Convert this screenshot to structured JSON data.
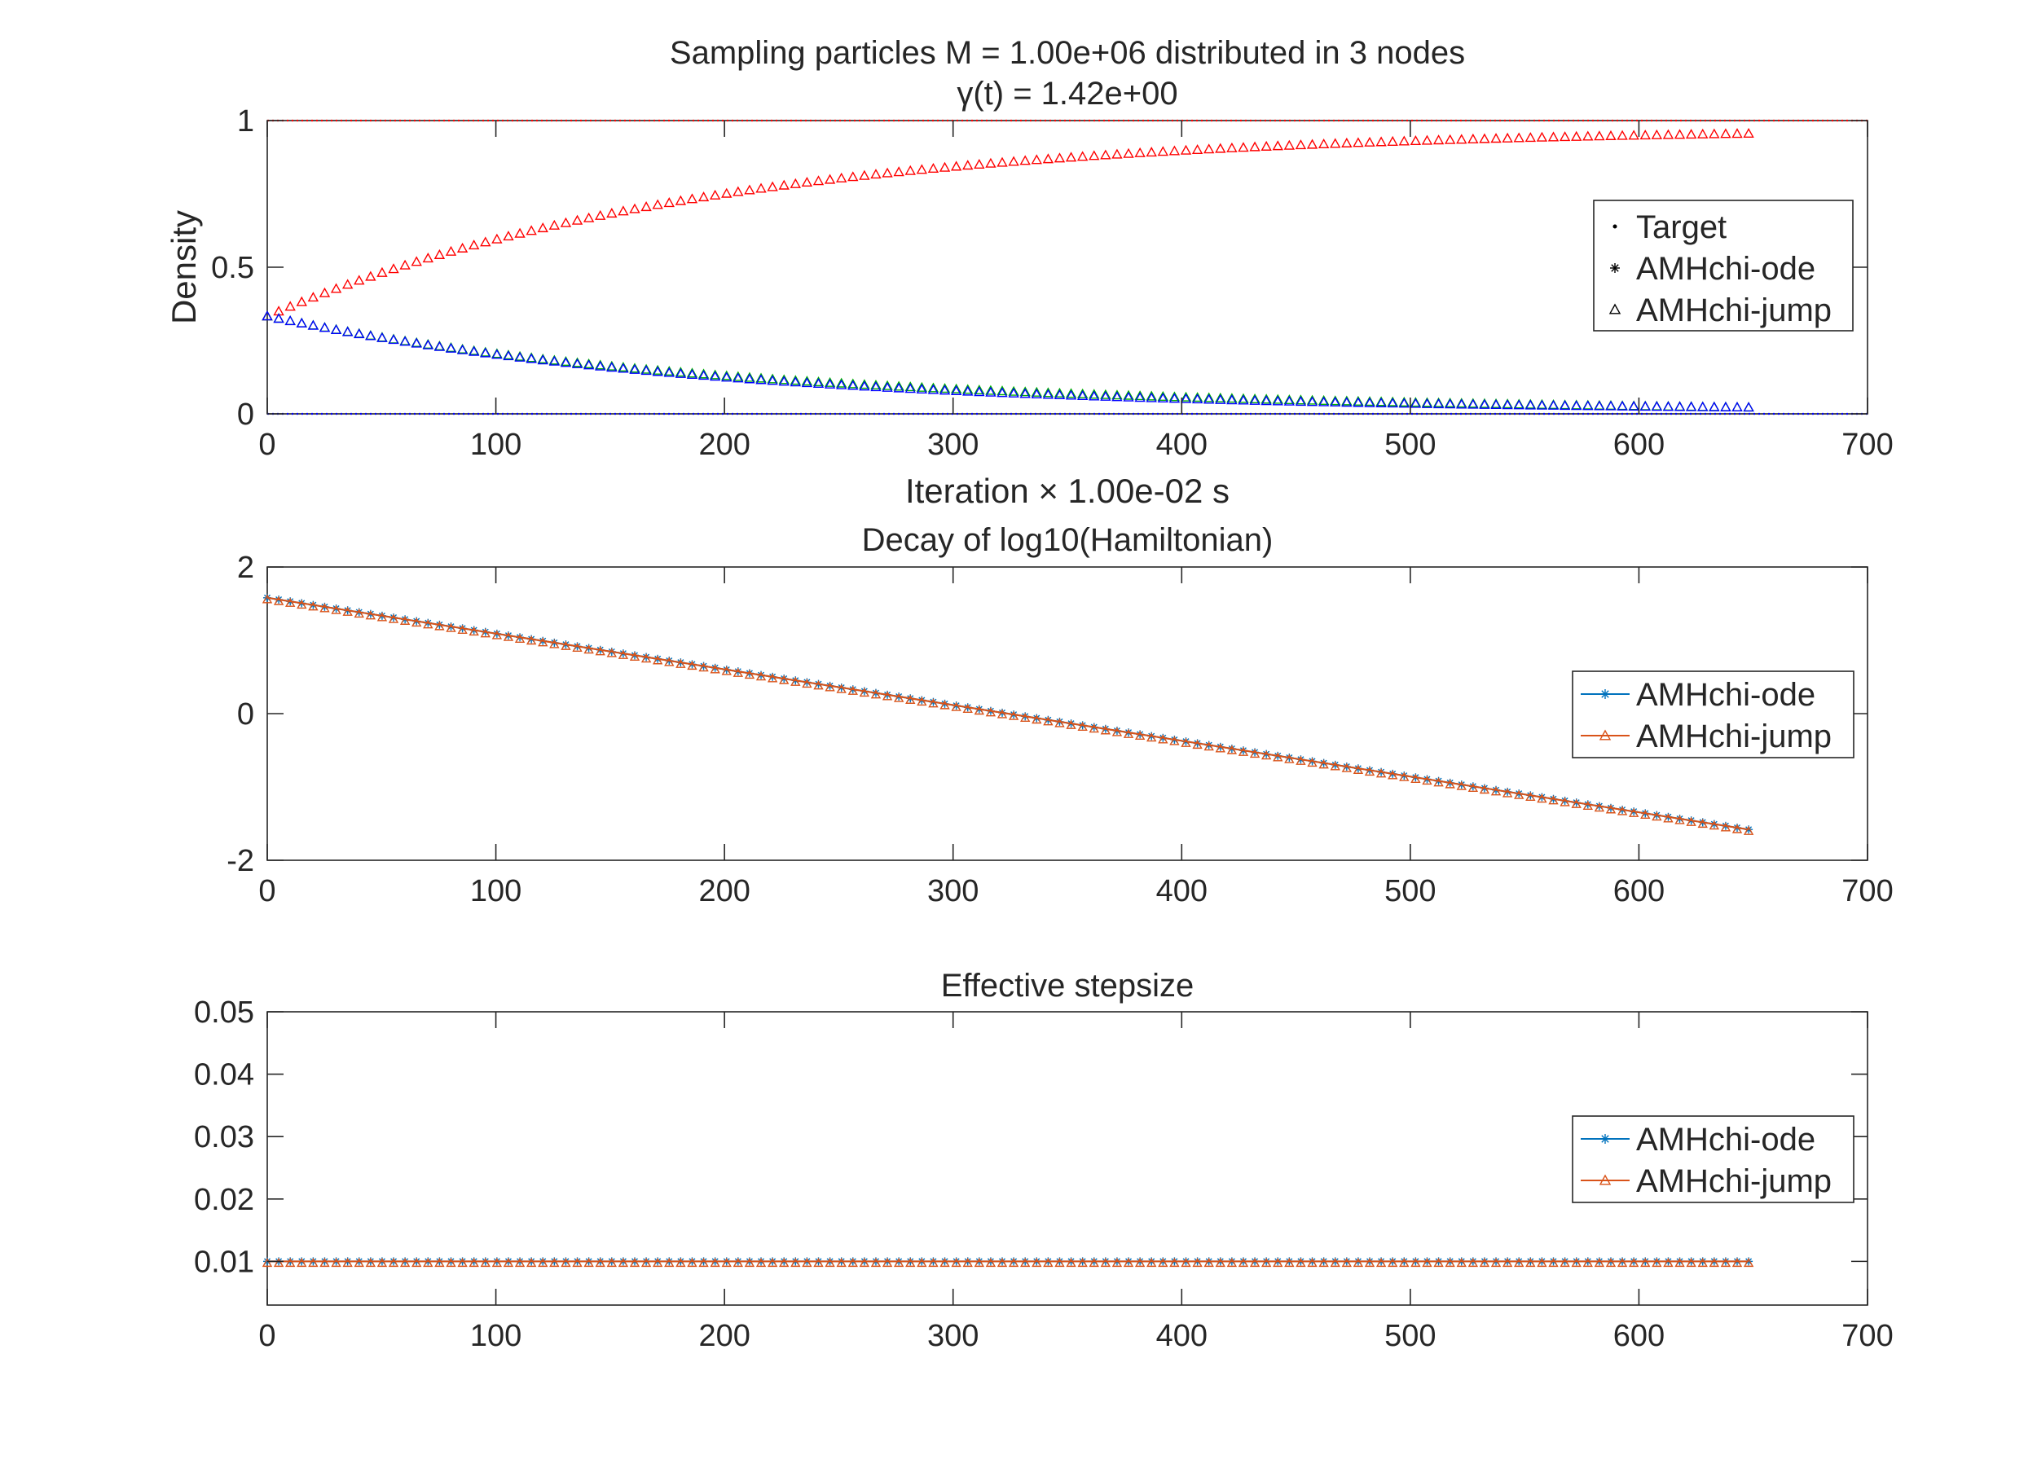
{
  "colors": {
    "red": "#ff0000",
    "blue": "#0000ff",
    "green": "#00b000",
    "ode_blue": "#0072bd",
    "jump_orange": "#d95319",
    "target_black": "#000000",
    "axis": "#262626"
  },
  "chart_data": [
    {
      "type": "scatter",
      "title": "Sampling particles M = 1.00e+06 distributed in 3 nodes",
      "subtitle": "γ(t) = 1.42e+00",
      "xlabel": "Iteration × 1.00e-02 s",
      "ylabel": "Density",
      "xlim": [
        0,
        700
      ],
      "ylim": [
        0,
        1
      ],
      "xticks": [
        0,
        100,
        200,
        300,
        400,
        500,
        600,
        700
      ],
      "yticks": [
        0,
        0.5,
        1
      ],
      "ytick_labels": [
        "0",
        "0.5",
        "1"
      ],
      "grid": false,
      "legend_position": "right",
      "legend": [
        "Target",
        "AMHchi-ode",
        "AMHchi-jump"
      ],
      "target_lines": [
        {
          "y": 1,
          "color": "#ff0000"
        },
        {
          "y": 0,
          "color": "#0000ff"
        }
      ],
      "markers_per_series": 130,
      "x_end": 648,
      "series": [
        {
          "curve": "red",
          "color": "#ff0000",
          "start": 0.333,
          "end": 0.978,
          "decay_rate": 0.0052
        },
        {
          "curve": "green",
          "color": "#00b000",
          "start": 0.333,
          "end": 0.011,
          "decay_rate": 0.0052
        },
        {
          "curve": "blue",
          "color": "#0000ff",
          "start": 0.333,
          "end": 0.011,
          "decay_rate": 0.0052
        }
      ],
      "x": [
        0,
        50,
        100,
        150,
        200,
        300,
        400,
        500,
        600,
        648
      ],
      "red_values": [
        0.333,
        0.47,
        0.59,
        0.68,
        0.76,
        0.86,
        0.92,
        0.95,
        0.97,
        0.978
      ],
      "blue_values": [
        0.333,
        0.26,
        0.2,
        0.155,
        0.12,
        0.07,
        0.04,
        0.025,
        0.015,
        0.011
      ]
    },
    {
      "type": "line",
      "title": "Decay of log10(Hamiltonian)",
      "xlim": [
        0,
        700
      ],
      "ylim": [
        -2,
        2
      ],
      "xticks": [
        0,
        100,
        200,
        300,
        400,
        500,
        600,
        700
      ],
      "yticks": [
        -2,
        0,
        2
      ],
      "ytick_labels": [
        "-2",
        "0",
        "2"
      ],
      "grid": false,
      "legend_position": "right",
      "legend": [
        "AMHchi-ode",
        "AMHchi-jump"
      ],
      "markers_per_series": 130,
      "x_end": 648,
      "series": [
        {
          "name": "AMHchi-ode",
          "color": "#0072bd",
          "marker": "star",
          "x": [
            0,
            648
          ],
          "values": [
            1.58,
            -1.58
          ]
        },
        {
          "name": "AMHchi-jump",
          "color": "#d95319",
          "marker": "triangle",
          "x": [
            0,
            648
          ],
          "values": [
            1.58,
            -1.58
          ]
        }
      ]
    },
    {
      "type": "line",
      "title": "Effective stepsize",
      "xlim": [
        0,
        700
      ],
      "ylim": [
        0.003,
        0.05
      ],
      "xticks": [
        0,
        100,
        200,
        300,
        400,
        500,
        600,
        700
      ],
      "yticks": [
        0.01,
        0.02,
        0.03,
        0.04,
        0.05
      ],
      "ytick_labels": [
        "0.01",
        "0.02",
        "0.03",
        "0.04",
        "0.05"
      ],
      "grid": false,
      "legend_position": "right",
      "legend": [
        "AMHchi-ode",
        "AMHchi-jump"
      ],
      "markers_per_series": 130,
      "x_end": 648,
      "series": [
        {
          "name": "AMHchi-ode",
          "color": "#0072bd",
          "marker": "star",
          "x": [
            0,
            648
          ],
          "values": [
            0.01,
            0.01
          ]
        },
        {
          "name": "AMHchi-jump",
          "color": "#d95319",
          "marker": "triangle",
          "x": [
            0,
            648
          ],
          "values": [
            0.01,
            0.01
          ]
        }
      ]
    }
  ]
}
